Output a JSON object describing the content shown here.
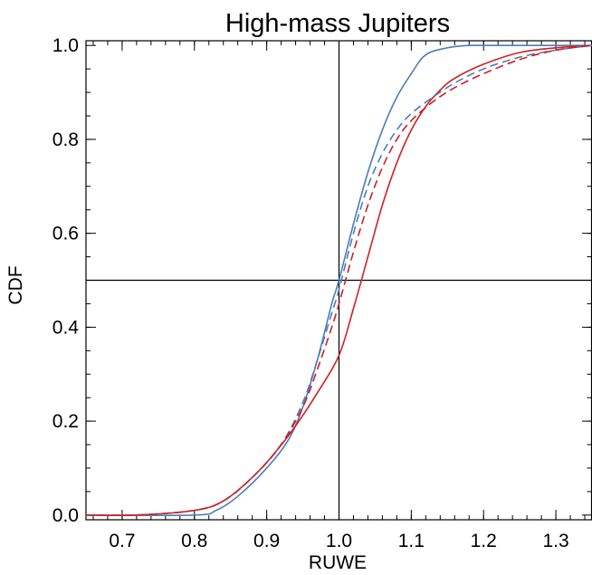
{
  "chart_data": {
    "type": "line",
    "title": "High-mass Jupiters",
    "xlabel": "RUWE",
    "ylabel": "CDF",
    "xlim": [
      0.65,
      1.35
    ],
    "ylim": [
      -0.01,
      1.01
    ],
    "x_ticks": [
      0.7,
      0.8,
      0.9,
      1.0,
      1.1,
      1.2,
      1.3
    ],
    "x_tick_labels": [
      "0.7",
      "0.8",
      "0.9",
      "1.0",
      "1.1",
      "1.2",
      "1.3"
    ],
    "y_ticks": [
      0.0,
      0.2,
      0.4,
      0.6,
      0.8,
      1.0
    ],
    "y_tick_labels": [
      "0.0",
      "0.2",
      "0.4",
      "0.6",
      "0.8",
      "1.0"
    ],
    "reference_lines": {
      "x": 1.0,
      "y": 0.5,
      "color": "#000000"
    },
    "grid": false,
    "series": [
      {
        "color": "#4a7dbe",
        "dash": "solid",
        "x": [
          0.65,
          0.8,
          0.83,
          0.86,
          0.9,
          0.93,
          0.95,
          0.97,
          0.99,
          1.0,
          1.02,
          1.04,
          1.06,
          1.08,
          1.1,
          1.12,
          1.15,
          1.18,
          1.22,
          1.35
        ],
        "y": [
          0.0,
          0.0,
          0.01,
          0.04,
          0.1,
          0.16,
          0.23,
          0.33,
          0.45,
          0.5,
          0.62,
          0.73,
          0.82,
          0.89,
          0.94,
          0.98,
          0.995,
          1.0,
          1.0,
          1.0
        ]
      },
      {
        "color": "#d02020",
        "dash": "solid",
        "x": [
          0.65,
          0.72,
          0.8,
          0.84,
          0.88,
          0.91,
          0.94,
          0.97,
          1.0,
          1.02,
          1.04,
          1.06,
          1.08,
          1.1,
          1.12,
          1.14,
          1.16,
          1.2,
          1.25,
          1.3,
          1.35
        ],
        "y": [
          0.0,
          0.0,
          0.01,
          0.03,
          0.08,
          0.13,
          0.19,
          0.26,
          0.34,
          0.44,
          0.55,
          0.66,
          0.75,
          0.82,
          0.87,
          0.905,
          0.93,
          0.96,
          0.985,
          0.995,
          1.0
        ]
      },
      {
        "color": "#4a7dbe",
        "dash": "dashed",
        "x": [
          0.65,
          0.72,
          0.8,
          0.84,
          0.88,
          0.92,
          0.95,
          0.97,
          0.99,
          1.0,
          1.02,
          1.04,
          1.06,
          1.08,
          1.1,
          1.13,
          1.16,
          1.2,
          1.25,
          1.3,
          1.35
        ],
        "y": [
          0.0,
          0.0,
          0.01,
          0.03,
          0.08,
          0.15,
          0.24,
          0.33,
          0.43,
          0.48,
          0.6,
          0.7,
          0.77,
          0.82,
          0.855,
          0.89,
          0.92,
          0.95,
          0.975,
          0.99,
          1.0
        ]
      },
      {
        "color": "#d02020",
        "dash": "dashed",
        "x": [
          0.65,
          0.72,
          0.8,
          0.84,
          0.88,
          0.92,
          0.95,
          0.97,
          0.99,
          1.0,
          1.02,
          1.04,
          1.06,
          1.08,
          1.1,
          1.13,
          1.16,
          1.2,
          1.25,
          1.3,
          1.35
        ],
        "y": [
          0.0,
          0.0,
          0.01,
          0.03,
          0.08,
          0.15,
          0.23,
          0.31,
          0.4,
          0.45,
          0.56,
          0.66,
          0.74,
          0.8,
          0.84,
          0.88,
          0.91,
          0.94,
          0.97,
          0.99,
          1.0
        ]
      }
    ]
  }
}
